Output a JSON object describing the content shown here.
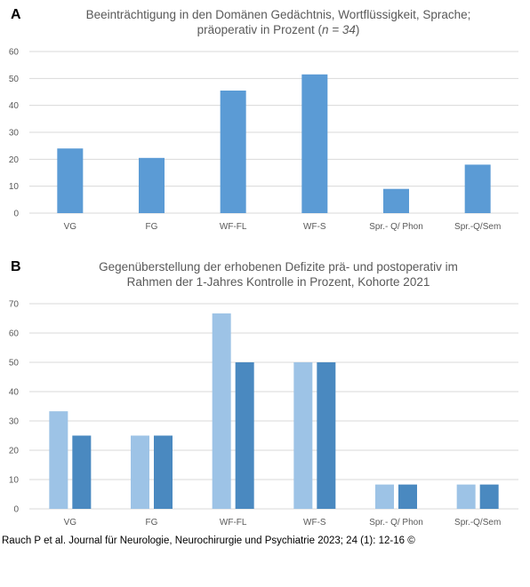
{
  "chart_data": [
    {
      "panel": "A",
      "type": "bar",
      "title_line1": "Beeinträchtigung in den Domänen Gedächtnis, Wortflüssigkeit, Sprache;",
      "title_line2_pre": "präoperativ in Prozent (",
      "title_line2_italic": "n = 34",
      "title_line2_post": ")",
      "categories": [
        "VG",
        "FG",
        "WF-FL",
        "WF-S",
        "Spr.- Q/ Phon",
        "Spr.-Q/Sem"
      ],
      "series": [
        {
          "values": [
            24,
            20.5,
            45.5,
            51.5,
            9,
            18
          ],
          "color": "#5b9bd5"
        }
      ],
      "ylim": [
        0,
        60
      ],
      "yticks": [
        "0",
        "10",
        "20",
        "30",
        "40",
        "50",
        "60"
      ],
      "grid": true
    },
    {
      "panel": "B",
      "type": "bar",
      "title_line1": "Gegenüberstellung der erhobenen Defizite prä- und postoperativ im",
      "title_line2": "Rahmen der 1-Jahres Kontrolle in Prozent, Kohorte 2021",
      "categories": [
        "VG",
        "FG",
        "WF-FL",
        "WF-S",
        "Spr.- Q/ Phon",
        "Spr.-Q/Sem"
      ],
      "series": [
        {
          "values": [
            33.3,
            25,
            66.7,
            50,
            8.3,
            8.3
          ],
          "color": "#9dc3e6"
        },
        {
          "values": [
            25,
            25,
            50,
            50,
            8.3,
            8.3
          ],
          "color": "#4a89c0"
        }
      ],
      "ylim": [
        0,
        70
      ],
      "yticks": [
        "0",
        "10",
        "20",
        "30",
        "40",
        "50",
        "60",
        "70"
      ],
      "grid": true
    }
  ],
  "citation": "Rauch P et al. Journal für Neurologie, Neurochirurgie und Psychiatrie 2023; 24 (1): 12-16 ©"
}
